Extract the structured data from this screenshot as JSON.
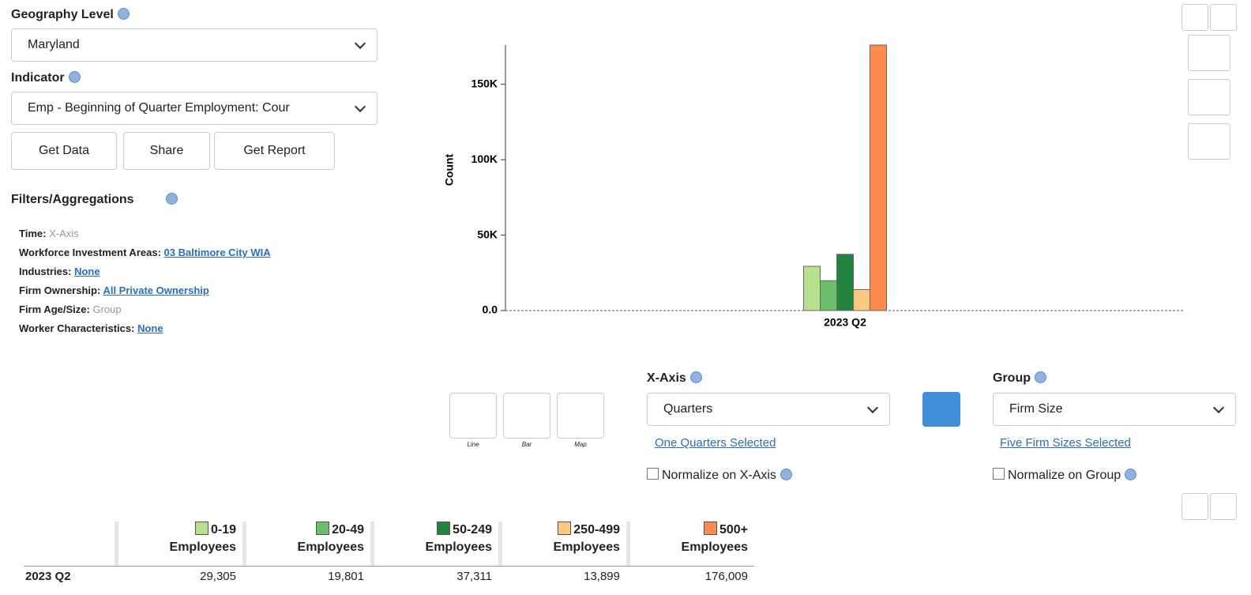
{
  "geography": {
    "label": "Geography Level",
    "value": "Maryland"
  },
  "indicator": {
    "label": "Indicator",
    "value": "Emp - Beginning of Quarter Employment: Cour"
  },
  "buttons": [
    "Get Data",
    "Share",
    "Get Report"
  ],
  "filters": {
    "title": "Filters/Aggregations",
    "items": [
      {
        "label": "Time:",
        "value": "X-Axis"
      },
      {
        "label": "Workforce Investment Areas:",
        "value": "03 Baltimore City WIA",
        "link": true
      },
      {
        "label": "Industries:",
        "value": "None",
        "link": true
      },
      {
        "label": "Firm Ownership:",
        "value": "All Private Ownership",
        "link": true
      },
      {
        "label": "Firm Age/Size:",
        "value": "Group"
      },
      {
        "label": "Worker Characteristics:",
        "value": "None",
        "link": true
      }
    ]
  },
  "chart_types": [
    "Line",
    "Bar",
    "Map"
  ],
  "x_axis": {
    "label": "X-Axis",
    "value": "Quarters",
    "selected": "One Quarters Selected",
    "normalize": "Normalize on X-Axis"
  },
  "group": {
    "label": "Group",
    "value": "Firm Size",
    "selected": "Five Firm Sizes Selected",
    "normalize": "Normalize on Group"
  },
  "chart_data": {
    "type": "bar",
    "y_label": "Count",
    "categories": [
      "2023 Q2"
    ],
    "series": [
      {
        "name": "0-19 Employees",
        "color": "#b7e08f",
        "values": [
          29305
        ],
        "value_labels": [
          "29,305"
        ]
      },
      {
        "name": "20-49 Employees",
        "color": "#6cbf6a",
        "values": [
          19801
        ],
        "value_labels": [
          "19,801"
        ]
      },
      {
        "name": "50-249 Employees",
        "color": "#23843f",
        "values": [
          37311
        ],
        "value_labels": [
          "37,311"
        ]
      },
      {
        "name": "250-499 Employees",
        "color": "#fdc97f",
        "values": [
          13899
        ],
        "value_labels": [
          "13,899"
        ]
      },
      {
        "name": "500+ Employees",
        "color": "#fd8a4e",
        "values": [
          176009
        ],
        "value_labels": [
          "176,009"
        ]
      }
    ],
    "ylim": [
      0,
      176009
    ],
    "yticks": [
      {
        "value": 0,
        "label": "0.0"
      },
      {
        "value": 50000,
        "label": "50K"
      },
      {
        "value": 100000,
        "label": "100K"
      },
      {
        "value": 150000,
        "label": "150K"
      }
    ]
  }
}
